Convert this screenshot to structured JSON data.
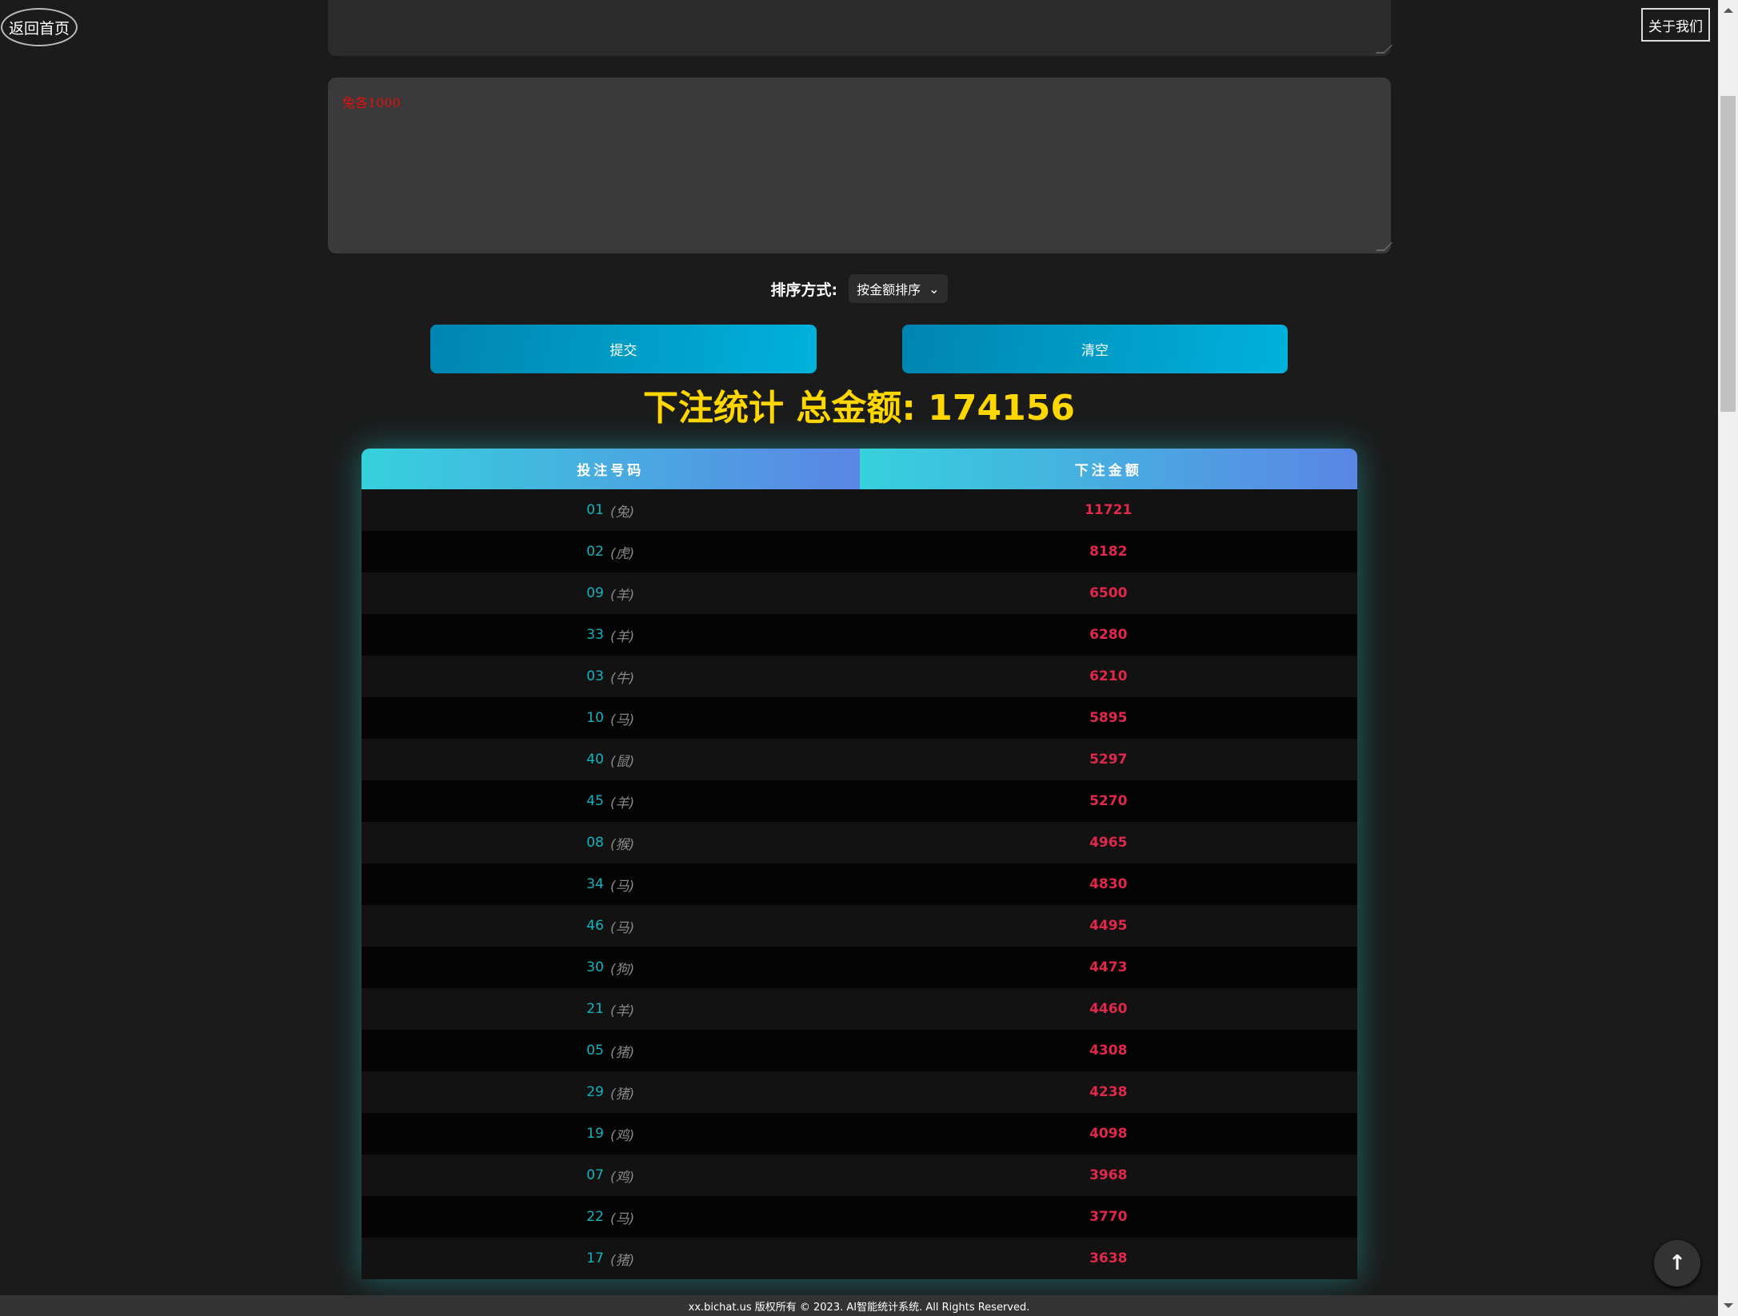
{
  "nav": {
    "home_label": "返回首页",
    "about_label": "关于我们"
  },
  "input": {
    "textarea_value": "兔各1000"
  },
  "sort": {
    "label": "排序方式:",
    "selected": "按金额排序"
  },
  "actions": {
    "submit_label": "提交",
    "clear_label": "清空"
  },
  "summary": {
    "title": "下注统计 总金额: 174156"
  },
  "table": {
    "headers": [
      "投注号码",
      "下注金额"
    ],
    "rows": [
      {
        "number": "01",
        "zodiac": "(兔)",
        "amount": "11721"
      },
      {
        "number": "02",
        "zodiac": "(虎)",
        "amount": "8182"
      },
      {
        "number": "09",
        "zodiac": "(羊)",
        "amount": "6500"
      },
      {
        "number": "33",
        "zodiac": "(羊)",
        "amount": "6280"
      },
      {
        "number": "03",
        "zodiac": "(牛)",
        "amount": "6210"
      },
      {
        "number": "10",
        "zodiac": "(马)",
        "amount": "5895"
      },
      {
        "number": "40",
        "zodiac": "(鼠)",
        "amount": "5297"
      },
      {
        "number": "45",
        "zodiac": "(羊)",
        "amount": "5270"
      },
      {
        "number": "08",
        "zodiac": "(猴)",
        "amount": "4965"
      },
      {
        "number": "34",
        "zodiac": "(马)",
        "amount": "4830"
      },
      {
        "number": "46",
        "zodiac": "(马)",
        "amount": "4495"
      },
      {
        "number": "30",
        "zodiac": "(狗)",
        "amount": "4473"
      },
      {
        "number": "21",
        "zodiac": "(羊)",
        "amount": "4460"
      },
      {
        "number": "05",
        "zodiac": "(猪)",
        "amount": "4308"
      },
      {
        "number": "29",
        "zodiac": "(猪)",
        "amount": "4238"
      },
      {
        "number": "19",
        "zodiac": "(鸡)",
        "amount": "4098"
      },
      {
        "number": "07",
        "zodiac": "(鸡)",
        "amount": "3968"
      },
      {
        "number": "22",
        "zodiac": "(马)",
        "amount": "3770"
      },
      {
        "number": "17",
        "zodiac": "(猪)",
        "amount": "3638"
      }
    ]
  },
  "footer": {
    "text": "xx.bichat.us 版权所有 © 2023. AI智能统计系统. All Rights Reserved."
  },
  "icons": {
    "back_to_top": "arrow-up-icon",
    "select": "chevron-down-icon"
  },
  "colors": {
    "title": "#ffd700",
    "number": "#14b3c0",
    "amount": "#e0284a",
    "input_text": "#e01010"
  }
}
